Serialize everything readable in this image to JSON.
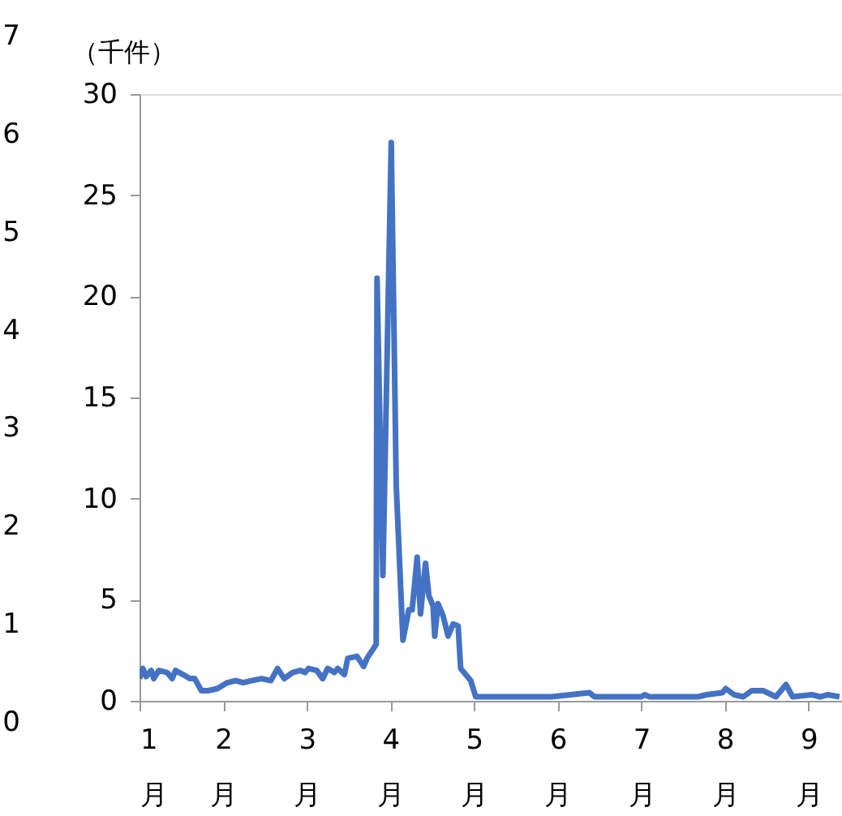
{
  "chart_data": {
    "type": "line",
    "ylabel": "（千件）",
    "x": [
      1.0,
      1.04,
      1.08,
      1.14,
      1.17,
      1.23,
      1.33,
      1.39,
      1.43,
      1.52,
      1.6,
      1.66,
      1.74,
      1.82,
      1.93,
      2.05,
      2.15,
      2.24,
      2.34,
      2.46,
      2.57,
      2.65,
      2.73,
      2.83,
      2.92,
      2.98,
      3.02,
      3.12,
      3.19,
      3.25,
      3.33,
      3.37,
      3.45,
      3.49,
      3.6,
      3.68,
      3.72,
      3.8,
      3.83,
      3.84,
      3.91,
      4.01,
      4.07,
      4.15,
      4.22,
      4.26,
      4.32,
      4.36,
      4.42,
      4.46,
      4.51,
      4.53,
      4.57,
      4.63,
      4.69,
      4.75,
      4.81,
      4.84,
      4.96,
      5.02,
      5.16,
      5.54,
      5.93,
      6.38,
      6.44,
      7.0,
      7.04,
      7.1,
      7.68,
      7.78,
      7.97,
      8.01,
      8.11,
      8.22,
      8.32,
      8.46,
      8.61,
      8.73,
      8.81,
      9.04,
      9.14,
      9.23,
      9.37
    ],
    "series": [
      {
        "color": "#4472c4",
        "values": [
          1.1,
          1.6,
          1.2,
          1.5,
          1.1,
          1.5,
          1.4,
          1.1,
          1.5,
          1.3,
          1.1,
          1.1,
          0.5,
          0.5,
          0.6,
          0.9,
          1.0,
          0.9,
          1.0,
          1.1,
          1.0,
          1.6,
          1.1,
          1.4,
          1.5,
          1.4,
          1.6,
          1.5,
          1.1,
          1.6,
          1.4,
          1.6,
          1.3,
          2.1,
          2.2,
          1.7,
          2.1,
          2.6,
          2.8,
          20.9,
          6.2,
          27.6,
          10.6,
          3.0,
          4.5,
          4.5,
          7.1,
          4.3,
          6.8,
          5.2,
          4.7,
          3.2,
          4.8,
          4.2,
          3.2,
          3.8,
          3.7,
          1.6,
          1.0,
          0.2,
          0.2,
          0.2,
          0.2,
          0.4,
          0.2,
          0.2,
          0.3,
          0.2,
          0.2,
          0.3,
          0.4,
          0.6,
          0.3,
          0.2,
          0.5,
          0.5,
          0.2,
          0.8,
          0.2,
          0.3,
          0.2,
          0.3,
          0.2
        ]
      }
    ],
    "xlim": [
      1,
      9.4
    ],
    "xticks": [
      {
        "value": 1,
        "label": "1\n月"
      },
      {
        "value": 2,
        "label": "2\n月"
      },
      {
        "value": 3,
        "label": "3\n月"
      },
      {
        "value": 4,
        "label": "4\n月"
      },
      {
        "value": 5,
        "label": "5\n月"
      },
      {
        "value": 6,
        "label": "6\n月"
      },
      {
        "value": 7,
        "label": "7\n月"
      },
      {
        "value": 8,
        "label": "8\n月"
      },
      {
        "value": 9,
        "label": "9\n月"
      }
    ],
    "ylim": [
      0,
      30
    ],
    "yticks": [
      0,
      5,
      10,
      15,
      20,
      25,
      30
    ],
    "y2lim": [
      0,
      7
    ],
    "y2ticks": [
      0,
      1,
      2,
      3,
      4,
      5,
      6,
      7
    ],
    "grid": false,
    "marker": "none",
    "line_style": "solid"
  }
}
